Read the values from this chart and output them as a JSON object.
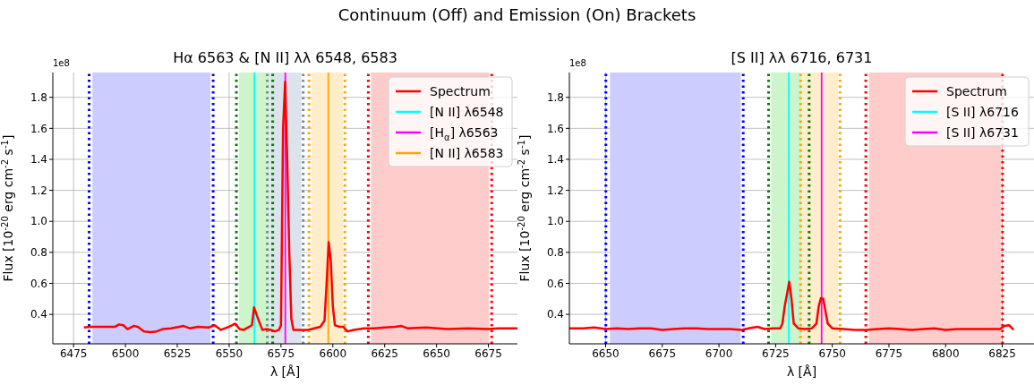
{
  "chart_data": [
    {
      "type": "line",
      "title": "Hα 6563 & [N II] λλ 6548, 6583",
      "xlabel": "λ [Å]",
      "ylabel": "Flux [10$^{-20}$ erg cm$^{-2}$ s$^{-1}$]",
      "annotations": [
        "Continuum (Off) and Emission (On) Brackets",
        "1e8"
      ],
      "xlim": [
        6465,
        6689
      ],
      "xticks": [
        6475,
        6500,
        6525,
        6550,
        6575,
        6600,
        6625,
        6650,
        6675
      ],
      "ylim": [
        0.21,
        1.96
      ],
      "yticks": [
        0.4,
        0.6,
        0.8,
        {
          "value": 1,
          "label": "1.0"
        },
        1.2,
        1.4,
        1.6,
        1.8
      ],
      "grid": true,
      "legend": "top right",
      "series": [
        {
          "name": "Spectrum",
          "color": "#ff0000",
          "x": [
            6480,
            6483,
            6490,
            6495,
            6497,
            6499,
            6501,
            6504,
            6506,
            6509,
            6512,
            6515,
            6518,
            6522,
            6526,
            6528,
            6531,
            6535,
            6540,
            6543,
            6546,
            6550,
            6553,
            6555,
            6557,
            6559,
            6561,
            6562,
            6564,
            6566,
            6568,
            6570,
            6572,
            6574,
            6575,
            6576,
            6577,
            6578,
            6579,
            6580,
            6581,
            6584,
            6588,
            6591,
            6594,
            6596,
            6597,
            6598,
            6599,
            6600,
            6601,
            6603,
            6605,
            6607,
            6610,
            6615,
            6620,
            6625,
            6630,
            6633,
            6636,
            6645,
            6655,
            6665,
            6675,
            6680,
            6689
          ],
          "values": [
            0.315,
            0.32,
            0.32,
            0.32,
            0.335,
            0.33,
            0.305,
            0.325,
            0.32,
            0.29,
            0.285,
            0.29,
            0.305,
            0.31,
            0.32,
            0.325,
            0.31,
            0.32,
            0.315,
            0.33,
            0.3,
            0.32,
            0.34,
            0.305,
            0.3,
            0.315,
            0.33,
            0.445,
            0.37,
            0.3,
            0.305,
            0.3,
            0.29,
            0.3,
            0.33,
            1.6,
            1.9,
            1.4,
            0.8,
            0.37,
            0.3,
            0.3,
            0.3,
            0.31,
            0.32,
            0.36,
            0.6,
            0.865,
            0.75,
            0.45,
            0.33,
            0.32,
            0.32,
            0.29,
            0.3,
            0.31,
            0.31,
            0.315,
            0.32,
            0.325,
            0.31,
            0.315,
            0.305,
            0.31,
            0.305,
            0.31,
            0.31
          ]
        },
        {
          "name": "[N II] λ6548",
          "color": "#00ffff",
          "x": [
            6562.2,
            6562.2
          ],
          "values": [
            0.21,
            1.96
          ]
        },
        {
          "name": "[H$_{α}$] λ6563",
          "color": "#ff00ff",
          "x": [
            6577.1,
            6577.1
          ],
          "values": [
            0.21,
            1.96
          ]
        },
        {
          "name": "[N II] λ6583",
          "color": "#ffa500",
          "x": [
            6597.8,
            6597.8
          ],
          "values": [
            0.21,
            1.96
          ]
        }
      ],
      "bands": [
        {
          "axis": "x",
          "from": 6484.1,
          "to": 6541,
          "color": "#ccccff"
        },
        {
          "axis": "x",
          "from": 6554.8,
          "to": 6569.6,
          "color": "#ccf5cc"
        },
        {
          "axis": "x",
          "from": 6569.6,
          "to": 6584.8,
          "color": "#dde3ec"
        },
        {
          "axis": "x",
          "from": 6589.7,
          "to": 6604.8,
          "color": "#ffedcc"
        },
        {
          "axis": "x",
          "from": 6618.4,
          "to": 6675.3,
          "color": "#ffcccc"
        }
      ],
      "ref_lines": [
        {
          "axis": "x",
          "value": 6482.5,
          "color": "#0000ff",
          "line_style": "dotted"
        },
        {
          "axis": "x",
          "value": 6542.3,
          "color": "#0000ff",
          "line_style": "dotted"
        },
        {
          "axis": "x",
          "value": 6553.5,
          "color": "#008000",
          "line_style": "dotted"
        },
        {
          "axis": "x",
          "value": 6571,
          "color": "#008000",
          "line_style": "dotted"
        },
        {
          "axis": "x",
          "value": 6568.4,
          "color": "#778899",
          "line_style": "dotted"
        },
        {
          "axis": "x",
          "value": 6585.7,
          "color": "#778899",
          "line_style": "dotted"
        },
        {
          "axis": "x",
          "value": 6588.5,
          "color": "#ffa500",
          "line_style": "dotted"
        },
        {
          "axis": "x",
          "value": 6605.8,
          "color": "#ffa500",
          "line_style": "dotted"
        },
        {
          "axis": "x",
          "value": 6617.1,
          "color": "#ff0000",
          "line_style": "dotted"
        },
        {
          "axis": "x",
          "value": 6676.6,
          "color": "#ff0000",
          "line_style": "dotted"
        }
      ]
    },
    {
      "type": "line",
      "title": "[S II] λλ 6716, 6731",
      "xlabel": "λ [Å]",
      "ylabel": "Flux [10$^{-20}$ erg cm$^{-2}$ s$^{-1}$]",
      "annotations": [
        "1e8"
      ],
      "xlim": [
        6634,
        6839
      ],
      "xticks": [
        6650,
        6675,
        6700,
        6725,
        6750,
        6775,
        6800,
        6825
      ],
      "ylim": [
        0.21,
        1.96
      ],
      "yticks": [
        0.4,
        0.6,
        0.8,
        {
          "value": 1,
          "label": "1.0"
        },
        1.2,
        1.4,
        1.6,
        1.8
      ],
      "grid": true,
      "legend": "top right",
      "series": [
        {
          "name": "Spectrum",
          "color": "#ff0000",
          "x": [
            6634,
            6640,
            6645,
            6650,
            6655,
            6660,
            6665,
            6670,
            6675,
            6680,
            6685,
            6690,
            6695,
            6700,
            6705,
            6710,
            6713,
            6717,
            6720,
            6724,
            6727,
            6728,
            6729,
            6731,
            6732,
            6733,
            6735,
            6738,
            6741,
            6743,
            6744,
            6745,
            6746,
            6747,
            6748,
            6750,
            6755,
            6760,
            6765,
            6770,
            6775,
            6780,
            6785,
            6790,
            6795,
            6800,
            6805,
            6810,
            6815,
            6820,
            6824,
            6826,
            6828,
            6830
          ],
          "values": [
            0.31,
            0.31,
            0.315,
            0.305,
            0.31,
            0.305,
            0.31,
            0.31,
            0.3,
            0.305,
            0.31,
            0.31,
            0.305,
            0.305,
            0.305,
            0.3,
            0.31,
            0.32,
            0.305,
            0.31,
            0.31,
            0.34,
            0.45,
            0.61,
            0.5,
            0.34,
            0.31,
            0.305,
            0.31,
            0.34,
            0.45,
            0.505,
            0.5,
            0.42,
            0.34,
            0.31,
            0.305,
            0.3,
            0.3,
            0.305,
            0.31,
            0.305,
            0.3,
            0.305,
            0.31,
            0.3,
            0.305,
            0.305,
            0.305,
            0.305,
            0.305,
            0.325,
            0.33,
            0.3
          ]
        },
        {
          "name": "[S II] λ6716",
          "color": "#00ffff",
          "x": [
            6730.8,
            6730.8
          ],
          "values": [
            0.21,
            1.96
          ]
        },
        {
          "name": "[S II] λ6731",
          "color": "#ff00ff",
          "x": [
            6745.3,
            6745.3
          ],
          "values": [
            0.21,
            1.96
          ]
        }
      ],
      "bands": [
        {
          "axis": "x",
          "from": 6651.9,
          "to": 6709.6,
          "color": "#ccccff"
        },
        {
          "axis": "x",
          "from": 6723,
          "to": 6738.3,
          "color": "#ccf5cc"
        },
        {
          "axis": "x",
          "from": 6736.3,
          "to": 6752.5,
          "color": "#ffedcc"
        },
        {
          "axis": "x",
          "from": 6766.2,
          "to": 6824.4,
          "color": "#ffcccc"
        }
      ],
      "ref_lines": [
        {
          "axis": "x",
          "value": 6650.1,
          "color": "#0000ff",
          "line_style": "dotted"
        },
        {
          "axis": "x",
          "value": 6710.7,
          "color": "#0000ff",
          "line_style": "dotted"
        },
        {
          "axis": "x",
          "value": 6721.9,
          "color": "#008000",
          "line_style": "dotted"
        },
        {
          "axis": "x",
          "value": 6739.8,
          "color": "#008000",
          "line_style": "dotted"
        },
        {
          "axis": "x",
          "value": 6736,
          "color": "#ffa500",
          "line_style": "dotted"
        },
        {
          "axis": "x",
          "value": 6753.4,
          "color": "#ffa500",
          "line_style": "dotted"
        },
        {
          "axis": "x",
          "value": 6764.8,
          "color": "#ff0000",
          "line_style": "dotted"
        },
        {
          "axis": "x",
          "value": 6825.1,
          "color": "#ff0000",
          "line_style": "dotted"
        }
      ]
    }
  ]
}
